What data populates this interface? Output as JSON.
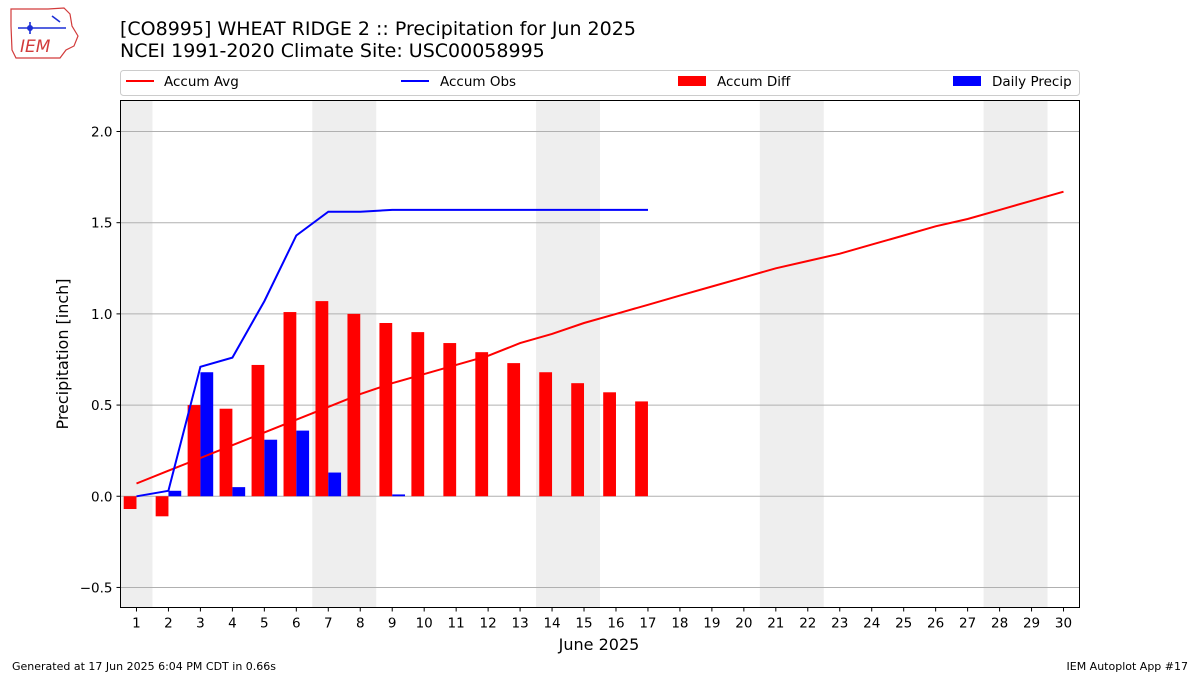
{
  "logo_text": "IEM",
  "title_line1": "[CO8995] WHEAT RIDGE 2 :: Precipitation for Jun 2025",
  "title_line2": "NCEI 1991-2020 Climate Site: USC00058995",
  "footer_left": "Generated at 17 Jun 2025 6:04 PM CDT in 0.66s",
  "footer_right": "IEM Autoplot App #17",
  "colors": {
    "avg": "#ff0000",
    "obs": "#0000ff",
    "diff": "#ff0000",
    "daily": "#0000ff",
    "weekend": "#eeeeee",
    "grid": "#b0b0b0"
  },
  "chart_data": {
    "type": "bar",
    "title": "[CO8995] WHEAT RIDGE 2 :: Precipitation for Jun 2025",
    "subtitle": "NCEI 1991-2020 Climate Site: USC00058995",
    "xlabel": "June 2025",
    "ylabel": "Precipitation [inch]",
    "xlim": [
      0.5,
      30.5
    ],
    "ylim": [
      -0.61,
      2.17
    ],
    "yticks": [
      -0.5,
      0.0,
      0.5,
      1.0,
      1.5,
      2.0
    ],
    "ytick_labels": [
      "−0.5",
      "0.0",
      "0.5",
      "1.0",
      "1.5",
      "2.0"
    ],
    "days": [
      1,
      2,
      3,
      4,
      5,
      6,
      7,
      8,
      9,
      10,
      11,
      12,
      13,
      14,
      15,
      16,
      17,
      18,
      19,
      20,
      21,
      22,
      23,
      24,
      25,
      26,
      27,
      28,
      29,
      30
    ],
    "x_tick_labels": [
      "1",
      "2",
      "3",
      "4",
      "5",
      "6",
      "7",
      "8",
      "9",
      "10",
      "11",
      "12",
      "13",
      "14",
      "15",
      "16",
      "17",
      "18",
      "19",
      "20",
      "21",
      "22",
      "23",
      "24",
      "25",
      "26",
      "27",
      "28",
      "29",
      "30"
    ],
    "weekend_spans": [
      [
        0.5,
        1.5
      ],
      [
        6.5,
        8.5
      ],
      [
        13.5,
        15.5
      ],
      [
        20.5,
        22.5
      ],
      [
        27.5,
        29.5
      ]
    ],
    "grid": "horizontal",
    "legend_position": "top",
    "legend": [
      "Accum Avg",
      "Accum Obs",
      "Accum Diff",
      "Daily Precip"
    ],
    "series": [
      {
        "name": "Accum Avg",
        "type": "line",
        "x": [
          1,
          2,
          3,
          4,
          5,
          6,
          7,
          8,
          9,
          10,
          11,
          12,
          13,
          14,
          15,
          16,
          17,
          18,
          19,
          20,
          21,
          22,
          23,
          24,
          25,
          26,
          27,
          28,
          29,
          30
        ],
        "values": [
          0.07,
          0.14,
          0.21,
          0.28,
          0.35,
          0.42,
          0.49,
          0.56,
          0.62,
          0.67,
          0.72,
          0.77,
          0.84,
          0.89,
          0.95,
          1.0,
          1.05,
          1.1,
          1.15,
          1.2,
          1.25,
          1.29,
          1.33,
          1.38,
          1.43,
          1.48,
          1.52,
          1.57,
          1.62,
          1.67
        ]
      },
      {
        "name": "Accum Obs",
        "type": "line",
        "x": [
          1,
          2,
          3,
          4,
          5,
          6,
          7,
          8,
          9,
          10,
          11,
          12,
          13,
          14,
          15,
          16,
          17
        ],
        "values": [
          0.0,
          0.03,
          0.71,
          0.76,
          1.07,
          1.43,
          1.56,
          1.56,
          1.57,
          1.57,
          1.57,
          1.57,
          1.57,
          1.57,
          1.57,
          1.57,
          1.57
        ]
      },
      {
        "name": "Accum Diff",
        "type": "bar",
        "x": [
          1,
          2,
          3,
          4,
          5,
          6,
          7,
          8,
          9,
          10,
          11,
          12,
          13,
          14,
          15,
          16,
          17
        ],
        "values": [
          -0.07,
          -0.11,
          0.5,
          0.48,
          0.72,
          1.01,
          1.07,
          1.0,
          0.95,
          0.9,
          0.84,
          0.79,
          0.73,
          0.68,
          0.62,
          0.57,
          0.52
        ]
      },
      {
        "name": "Daily Precip",
        "type": "bar",
        "x": [
          1,
          2,
          3,
          4,
          5,
          6,
          7,
          8,
          9,
          10,
          11,
          12,
          13,
          14,
          15,
          16,
          17
        ],
        "values": [
          0.0,
          0.03,
          0.68,
          0.05,
          0.31,
          0.36,
          0.13,
          0.0,
          0.01,
          0.0,
          0.0,
          0.0,
          0.0,
          0.0,
          0.0,
          0.0,
          0.0
        ]
      }
    ]
  }
}
